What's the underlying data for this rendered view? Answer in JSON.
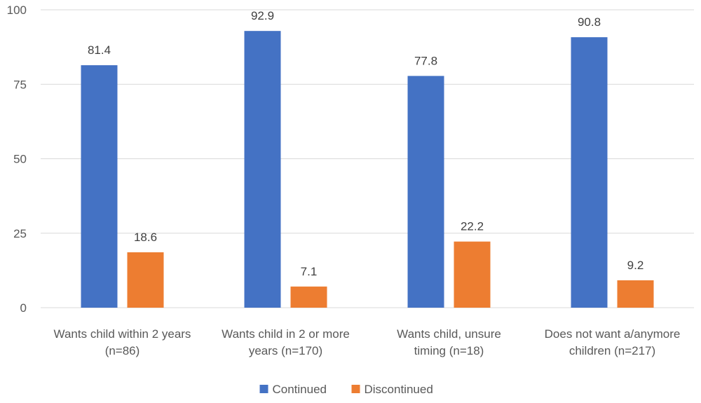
{
  "chart_data": {
    "type": "bar",
    "title": "",
    "xlabel": "",
    "ylabel": "",
    "ylim": [
      0,
      100
    ],
    "yticks": [
      0,
      25,
      50,
      75,
      100
    ],
    "grid": true,
    "legend_position": "bottom",
    "categories": [
      [
        "Wants child within 2 years",
        "(n=86)"
      ],
      [
        "Wants child in 2 or more",
        "years (n=170)"
      ],
      [
        "Wants child, unsure",
        "timing (n=18)"
      ],
      [
        "Does not want a/anymore",
        "children (n=217)"
      ]
    ],
    "series": [
      {
        "name": "Continued",
        "color": "#4472c4",
        "values": [
          81.4,
          92.9,
          77.8,
          90.8
        ]
      },
      {
        "name": "Discontinued",
        "color": "#ed7d31",
        "values": [
          18.6,
          7.1,
          22.2,
          9.2
        ]
      }
    ]
  }
}
